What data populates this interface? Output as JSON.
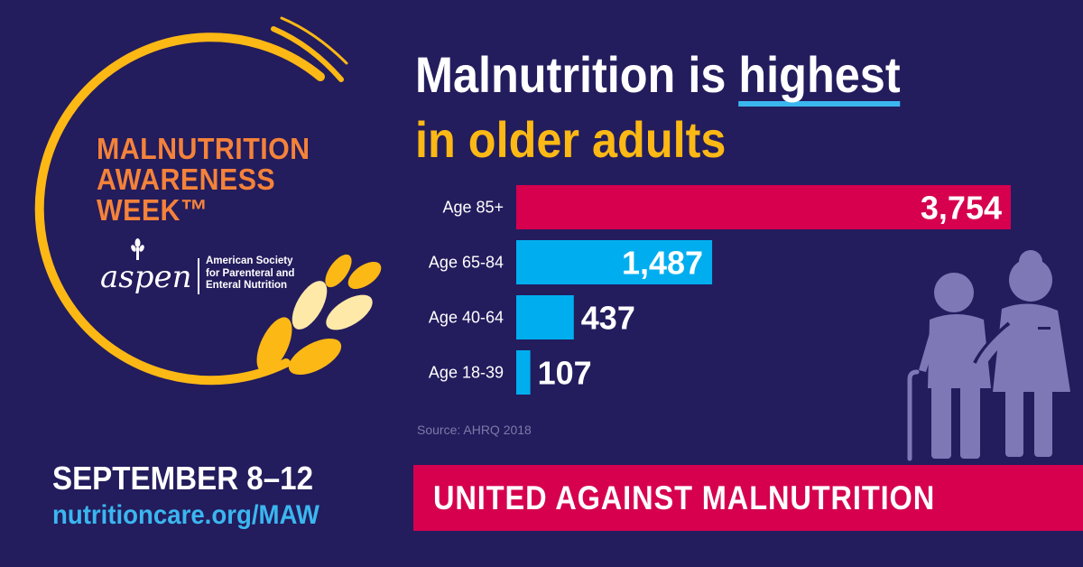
{
  "logo": {
    "event_lines": [
      "MALNUTRITION",
      "AWARENESS",
      "WEEK™"
    ],
    "brand": "aspen",
    "org_name_lines": [
      "American Society",
      "for Parenteral and",
      "Enteral Nutrition"
    ],
    "colors": {
      "ring": "#fcb814",
      "event_text": "#f4823a"
    }
  },
  "headline": {
    "line1_prefix": "Malnutrition is ",
    "line1_highlight": "highest",
    "line2": "in older adults"
  },
  "chart_data": {
    "type": "bar",
    "orientation": "horizontal",
    "categories": [
      "Age 85+",
      "Age 65-84",
      "Age 40-64",
      "Age 18-39"
    ],
    "values": [
      3754,
      1487,
      437,
      107
    ],
    "value_labels": [
      "3,754",
      "1,487",
      "437",
      "107"
    ],
    "bar_colors": [
      "#d6004f",
      "#00aeef",
      "#00aeef",
      "#00aeef"
    ],
    "label_inside": [
      true,
      true,
      false,
      false
    ],
    "xlim": [
      0,
      3754
    ],
    "grid": false,
    "source": "Source: AHRQ 2018"
  },
  "event": {
    "date": "SEPTEMBER 8–12",
    "url": "nutritioncare.org/MAW"
  },
  "banner": {
    "text": "UNITED AGAINST MALNUTRITION",
    "color": "#d6004f"
  },
  "colors": {
    "background": "#231c5d",
    "accent_blue": "#3bb6ef",
    "accent_gold": "#fcb814",
    "illustration": "#7e79b6"
  }
}
